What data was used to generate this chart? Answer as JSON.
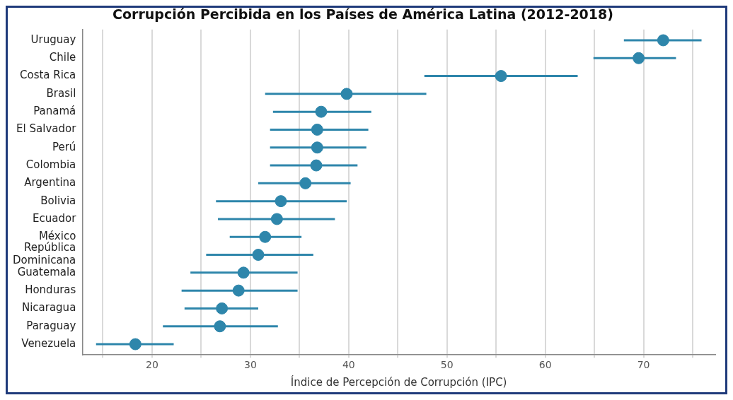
{
  "chart_data": {
    "type": "scatter",
    "orientation": "horizontal",
    "title": "Corrupción Percibida en los Países de América Latina (2012-2018)",
    "xlabel": "Índice de Percepción de Corrupción (IPC)",
    "categories": [
      "Uruguay",
      "Chile",
      "Costa Rica",
      "Brasil",
      "Panamá",
      "El Salvador",
      "Perú",
      "Colombia",
      "Argentina",
      "Bolivia",
      "Ecuador",
      "México",
      "República Dominicana",
      "Guatemala",
      "Honduras",
      "Nicaragua",
      "Paraguay",
      "Venezuela"
    ],
    "values": [
      72.0,
      69.5,
      55.5,
      39.8,
      37.2,
      36.8,
      36.8,
      36.7,
      35.6,
      33.1,
      32.7,
      31.5,
      30.8,
      29.3,
      28.8,
      27.1,
      26.9,
      18.3
    ],
    "errors": [
      [
        68.0,
        75.9
      ],
      [
        64.9,
        73.3
      ],
      [
        47.7,
        63.3
      ],
      [
        31.5,
        47.9
      ],
      [
        32.3,
        42.3
      ],
      [
        32.0,
        42.0
      ],
      [
        32.0,
        41.8
      ],
      [
        32.0,
        40.9
      ],
      [
        30.8,
        40.2
      ],
      [
        26.5,
        39.8
      ],
      [
        26.7,
        38.6
      ],
      [
        27.9,
        35.2
      ],
      [
        25.5,
        36.4
      ],
      [
        23.9,
        34.8
      ],
      [
        23.0,
        34.8
      ],
      [
        23.3,
        30.8
      ],
      [
        21.1,
        32.8
      ],
      [
        14.3,
        22.2
      ]
    ],
    "color": "#2e86ab",
    "xlim": [
      12.9,
      77.3
    ],
    "xticks": [
      {
        "value": 15,
        "label": null
      },
      20,
      {
        "value": 25,
        "label": null
      },
      30,
      {
        "value": 35,
        "label": null
      },
      40,
      {
        "value": 45,
        "label": null
      },
      50,
      {
        "value": 55,
        "label": null
      },
      60,
      {
        "value": 65,
        "label": null
      },
      70,
      {
        "value": 75,
        "label": null
      }
    ],
    "grid": "x",
    "marker": "circle"
  }
}
